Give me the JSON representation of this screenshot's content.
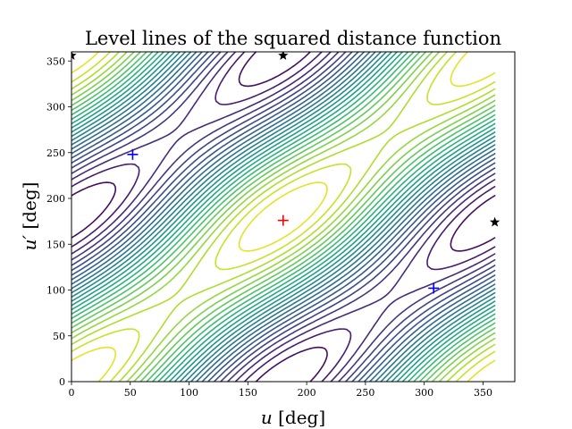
{
  "chart_data": {
    "type": "contour",
    "title": "Level lines of the squared distance function",
    "xlabel": {
      "symbol": "u",
      "unit": " [deg]"
    },
    "ylabel": {
      "symbol": "u′",
      "unit": " [deg]"
    },
    "xlim": [
      0,
      377
    ],
    "ylim": [
      0,
      360
    ],
    "xticks": [
      0,
      50,
      100,
      150,
      200,
      250,
      300,
      350
    ],
    "yticks": [
      0,
      50,
      100,
      150,
      200,
      250,
      300,
      350
    ],
    "colormap": "viridis",
    "contour_region": {
      "u": [
        0,
        360
      ],
      "u_prime": [
        0,
        360
      ]
    },
    "grid": false,
    "minimum": {
      "u": 180,
      "u_prime": 176,
      "marker": "+",
      "color": "#ff0000"
    },
    "saddle_points": [
      {
        "u": 52,
        "u_prime": 248,
        "marker": "+",
        "color": "#0000ff"
      },
      {
        "u": 308,
        "u_prime": 102,
        "marker": "+",
        "color": "#0000ff"
      }
    ],
    "maxima": [
      {
        "u": 0,
        "u_prime": 356,
        "marker": "star",
        "color": "#000000"
      },
      {
        "u": 180,
        "u_prime": 356,
        "marker": "star",
        "color": "#000000"
      },
      {
        "u": 360,
        "u_prime": 174,
        "marker": "star",
        "color": "#000000"
      }
    ]
  }
}
